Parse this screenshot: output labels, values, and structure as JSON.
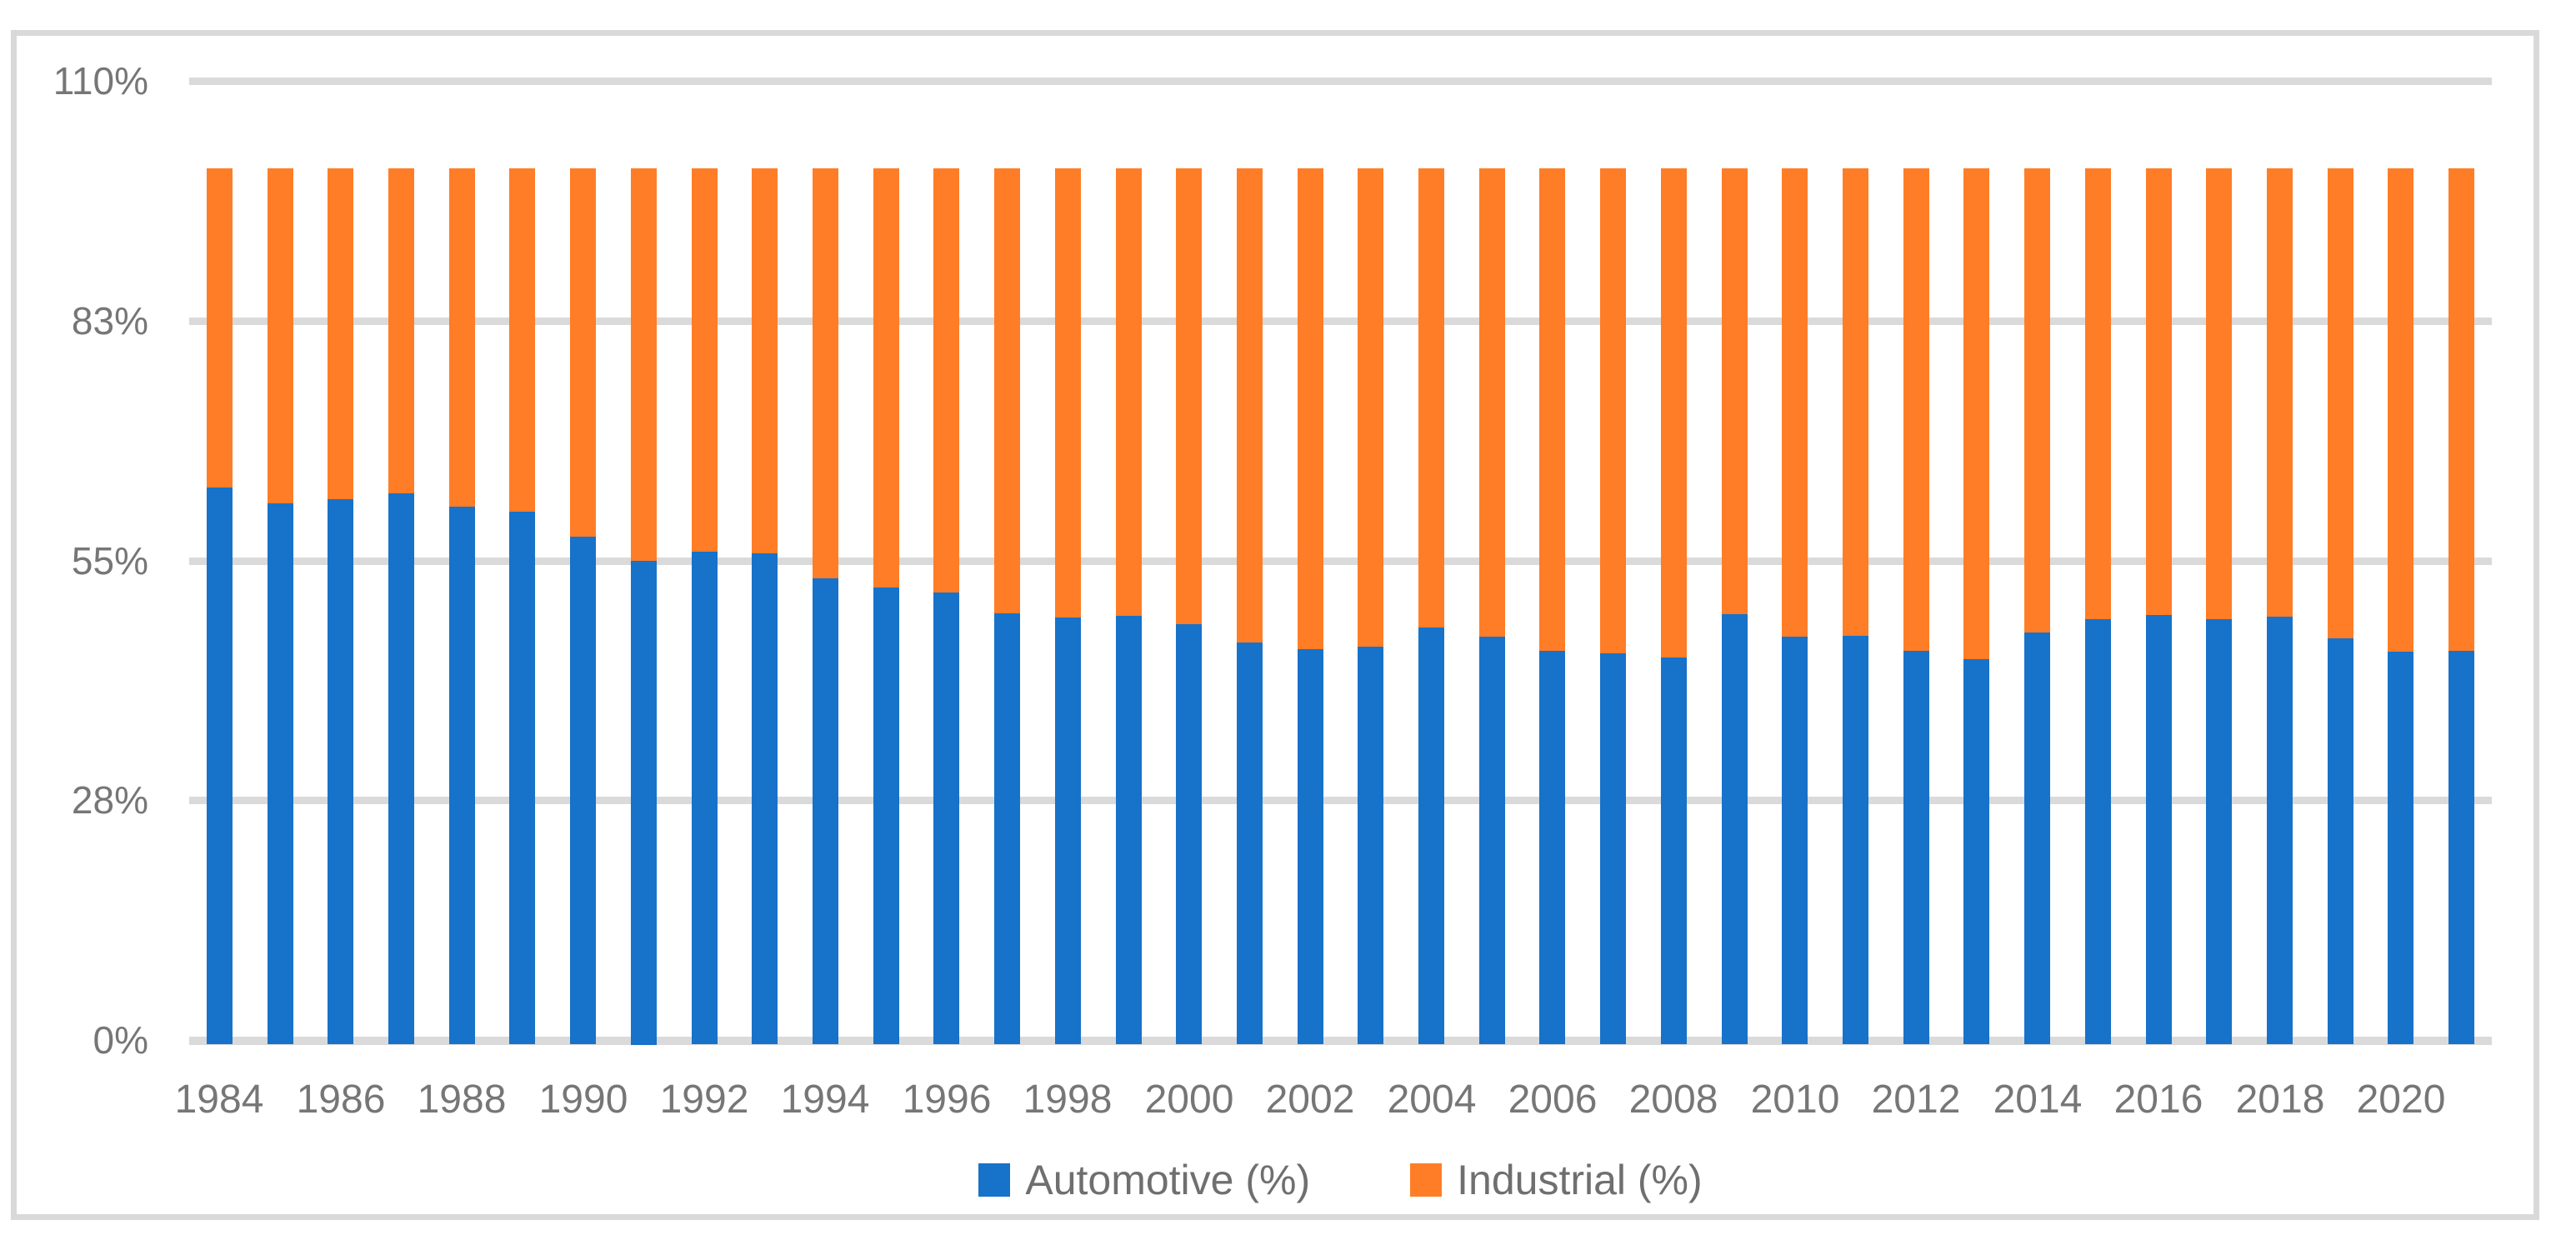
{
  "chart_data": {
    "type": "bar",
    "stacked": true,
    "title": "",
    "xlabel": "",
    "ylabel": "",
    "grid": true,
    "bar_total": 100,
    "categories": [
      "1984",
      "1985",
      "1986",
      "1987",
      "1988",
      "1989",
      "1990",
      "1991",
      "1992",
      "1993",
      "1994",
      "1995",
      "1996",
      "1997",
      "1998",
      "1999",
      "2000",
      "2001",
      "2002",
      "2003",
      "2004",
      "2005",
      "2006",
      "2007",
      "2008",
      "2009",
      "2010",
      "2011",
      "2012",
      "2013",
      "2014",
      "2015",
      "2016",
      "2017",
      "2018",
      "2019",
      "2020",
      "2021"
    ],
    "series": [
      {
        "name": "Automotive (%)",
        "color": "#1772C9",
        "values": [
          63.4,
          61.6,
          62.1,
          62.7,
          61.2,
          60.6,
          57.8,
          55.0,
          56.0,
          55.8,
          53.0,
          51.9,
          51.4,
          49.0,
          48.5,
          48.7,
          47.7,
          45.6,
          44.9,
          45.1,
          47.3,
          46.3,
          44.7,
          44.4,
          43.9,
          48.9,
          46.3,
          46.4,
          44.7,
          43.7,
          46.8,
          48.3,
          48.8,
          48.3,
          48.6,
          46.1,
          44.6,
          44.7
        ]
      },
      {
        "name": "Industrial (%)",
        "color": "#FF7D27",
        "values": [
          36.6,
          38.4,
          37.9,
          37.3,
          38.8,
          39.4,
          42.2,
          45.0,
          44.0,
          44.2,
          47.0,
          48.1,
          48.6,
          51.0,
          51.5,
          51.3,
          52.3,
          54.4,
          55.1,
          54.9,
          52.7,
          53.7,
          55.3,
          55.6,
          56.1,
          51.1,
          53.7,
          53.6,
          55.3,
          56.3,
          53.2,
          51.7,
          51.2,
          51.7,
          51.4,
          53.9,
          55.4,
          55.3
        ]
      }
    ],
    "y_axis": {
      "min": 0,
      "max": 110,
      "ticks": [
        {
          "label": "0%",
          "value": 0
        },
        {
          "label": "28%",
          "value": 27.5
        },
        {
          "label": "55%",
          "value": 55
        },
        {
          "label": "83%",
          "value": 82.5
        },
        {
          "label": "110%",
          "value": 110
        }
      ]
    },
    "x_axis": {
      "tick_labels": [
        "1984",
        "1986",
        "1988",
        "1990",
        "1992",
        "1994",
        "1996",
        "1998",
        "2000",
        "2002",
        "2004",
        "2006",
        "2008",
        "2010",
        "2012",
        "2014",
        "2016",
        "2018",
        "2020"
      ]
    },
    "legend": {
      "position": "bottom",
      "labels": [
        "Automotive (%)",
        "Industrial (%)"
      ]
    }
  }
}
